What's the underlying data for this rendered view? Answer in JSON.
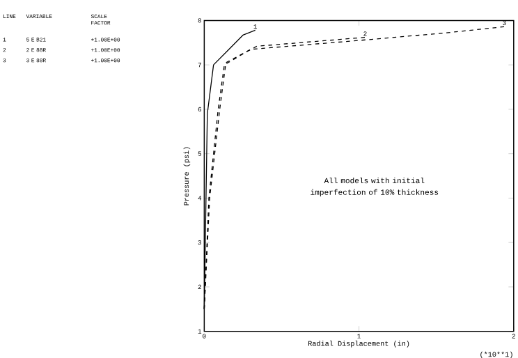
{
  "chart_data": {
    "type": "line",
    "xlabel": "Radial Displacement (in)",
    "ylabel": "Pressure (psi)",
    "annotations": [
      "All models with initial imperfection of 10% thickness",
      "(*10**1)",
      "LINE",
      "VARIABLE",
      "SCALE FACTOR",
      "1",
      "5 E B21",
      "+1.00E+00",
      "2",
      "2 E 88R",
      "+1.00E+00",
      "3",
      "3 E 88R",
      "+1.00E+00"
    ],
    "xlim": [
      0,
      2
    ],
    "ylim": [
      1,
      8
    ],
    "xticks": [
      0,
      1,
      2
    ],
    "yticks": [
      1,
      2,
      3,
      4,
      5,
      6,
      7,
      8
    ],
    "grid": false,
    "marker": "none",
    "series": [
      {
        "name": "1",
        "color": "#000000",
        "line_style": "solid",
        "x": [
          0,
          0.02,
          0.06,
          0.14,
          0.25,
          0.33
        ],
        "values": [
          1.5,
          5.9,
          7.0,
          7.28,
          7.67,
          7.78
        ]
      },
      {
        "name": "2",
        "color": "#000000",
        "line_style": "dashed",
        "x": [
          0,
          0.035,
          0.1,
          0.14,
          0.34,
          1.04
        ],
        "values": [
          1.5,
          4.0,
          6.0,
          7.05,
          7.42,
          7.62
        ]
      },
      {
        "name": "3",
        "color": "#000000",
        "line_style": "dashed",
        "x": [
          0,
          0.03,
          0.09,
          0.13,
          0.3,
          1.0,
          1.56,
          1.94
        ],
        "values": [
          1.5,
          4.0,
          6.0,
          7.0,
          7.35,
          7.55,
          7.72,
          7.86
        ]
      }
    ]
  }
}
